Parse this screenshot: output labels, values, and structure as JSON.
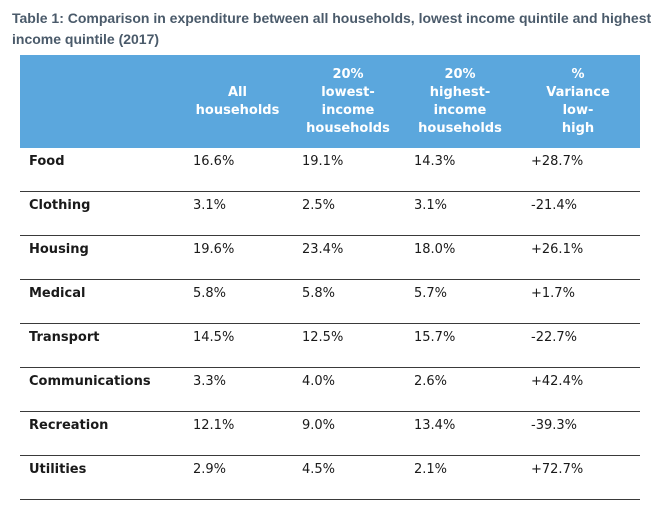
{
  "caption": {
    "prefix": "Table 1",
    "text": ": Comparison in expenditure between all households, lowest income quintile and highest income quintile (2017)"
  },
  "table": {
    "headers": [
      "",
      "All households",
      "20% lowest-income households",
      "20% highest-income households",
      "% Variance low-high"
    ],
    "header_lines": [
      [],
      [
        "All",
        "households"
      ],
      [
        "20%",
        "lowest-",
        "income",
        "households"
      ],
      [
        "20%",
        "highest-",
        "income",
        "households"
      ],
      [
        "%",
        "Variance",
        "low-",
        "high"
      ]
    ],
    "rows": [
      {
        "category": "Food",
        "all": "16.6%",
        "low": "19.1%",
        "high": "14.3%",
        "variance": "+28.7%"
      },
      {
        "category": "Clothing",
        "all": "3.1%",
        "low": "2.5%",
        "high": "3.1%",
        "variance": "-21.4%"
      },
      {
        "category": "Housing",
        "all": "19.6%",
        "low": "23.4%",
        "high": "18.0%",
        "variance": "+26.1%"
      },
      {
        "category": "Medical",
        "all": "5.8%",
        "low": "5.8%",
        "high": "5.7%",
        "variance": "+1.7%"
      },
      {
        "category": "Transport",
        "all": "14.5%",
        "low": "12.5%",
        "high": "15.7%",
        "variance": "-22.7%"
      },
      {
        "category": "Communications",
        "all": "3.3%",
        "low": "4.0%",
        "high": "2.6%",
        "variance": "+42.4%"
      },
      {
        "category": "Recreation",
        "all": "12.1%",
        "low": "9.0%",
        "high": "13.4%",
        "variance": "-39.3%"
      },
      {
        "category": "Utilities",
        "all": "2.9%",
        "low": "4.5%",
        "high": "2.1%",
        "variance": "+72.7%"
      }
    ]
  },
  "colors": {
    "header_background": "#5ba7dd",
    "header_text": "#ffffff",
    "caption_text": "#4a5a6a",
    "row_divider": "#3a3a3a"
  }
}
